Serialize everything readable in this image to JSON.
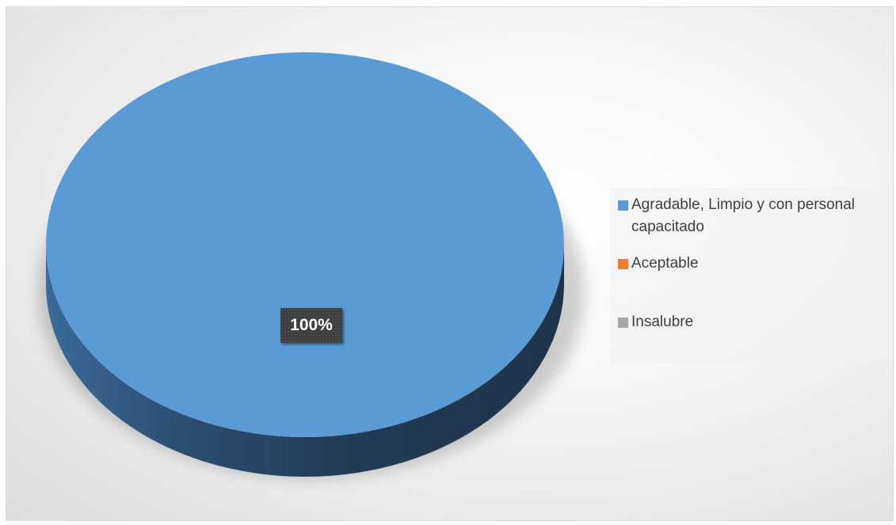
{
  "chart_data": {
    "type": "pie",
    "title": "",
    "categories": [
      "Agradable, Limpio y con personal capacitado",
      "Aceptable",
      "Insalubre"
    ],
    "values": [
      100,
      0,
      0
    ],
    "data_labels": [
      "100%"
    ],
    "colors": [
      "#5b9bd5",
      "#ed7d31",
      "#a5a5a5"
    ],
    "style": "3d",
    "legend_position": "right"
  }
}
